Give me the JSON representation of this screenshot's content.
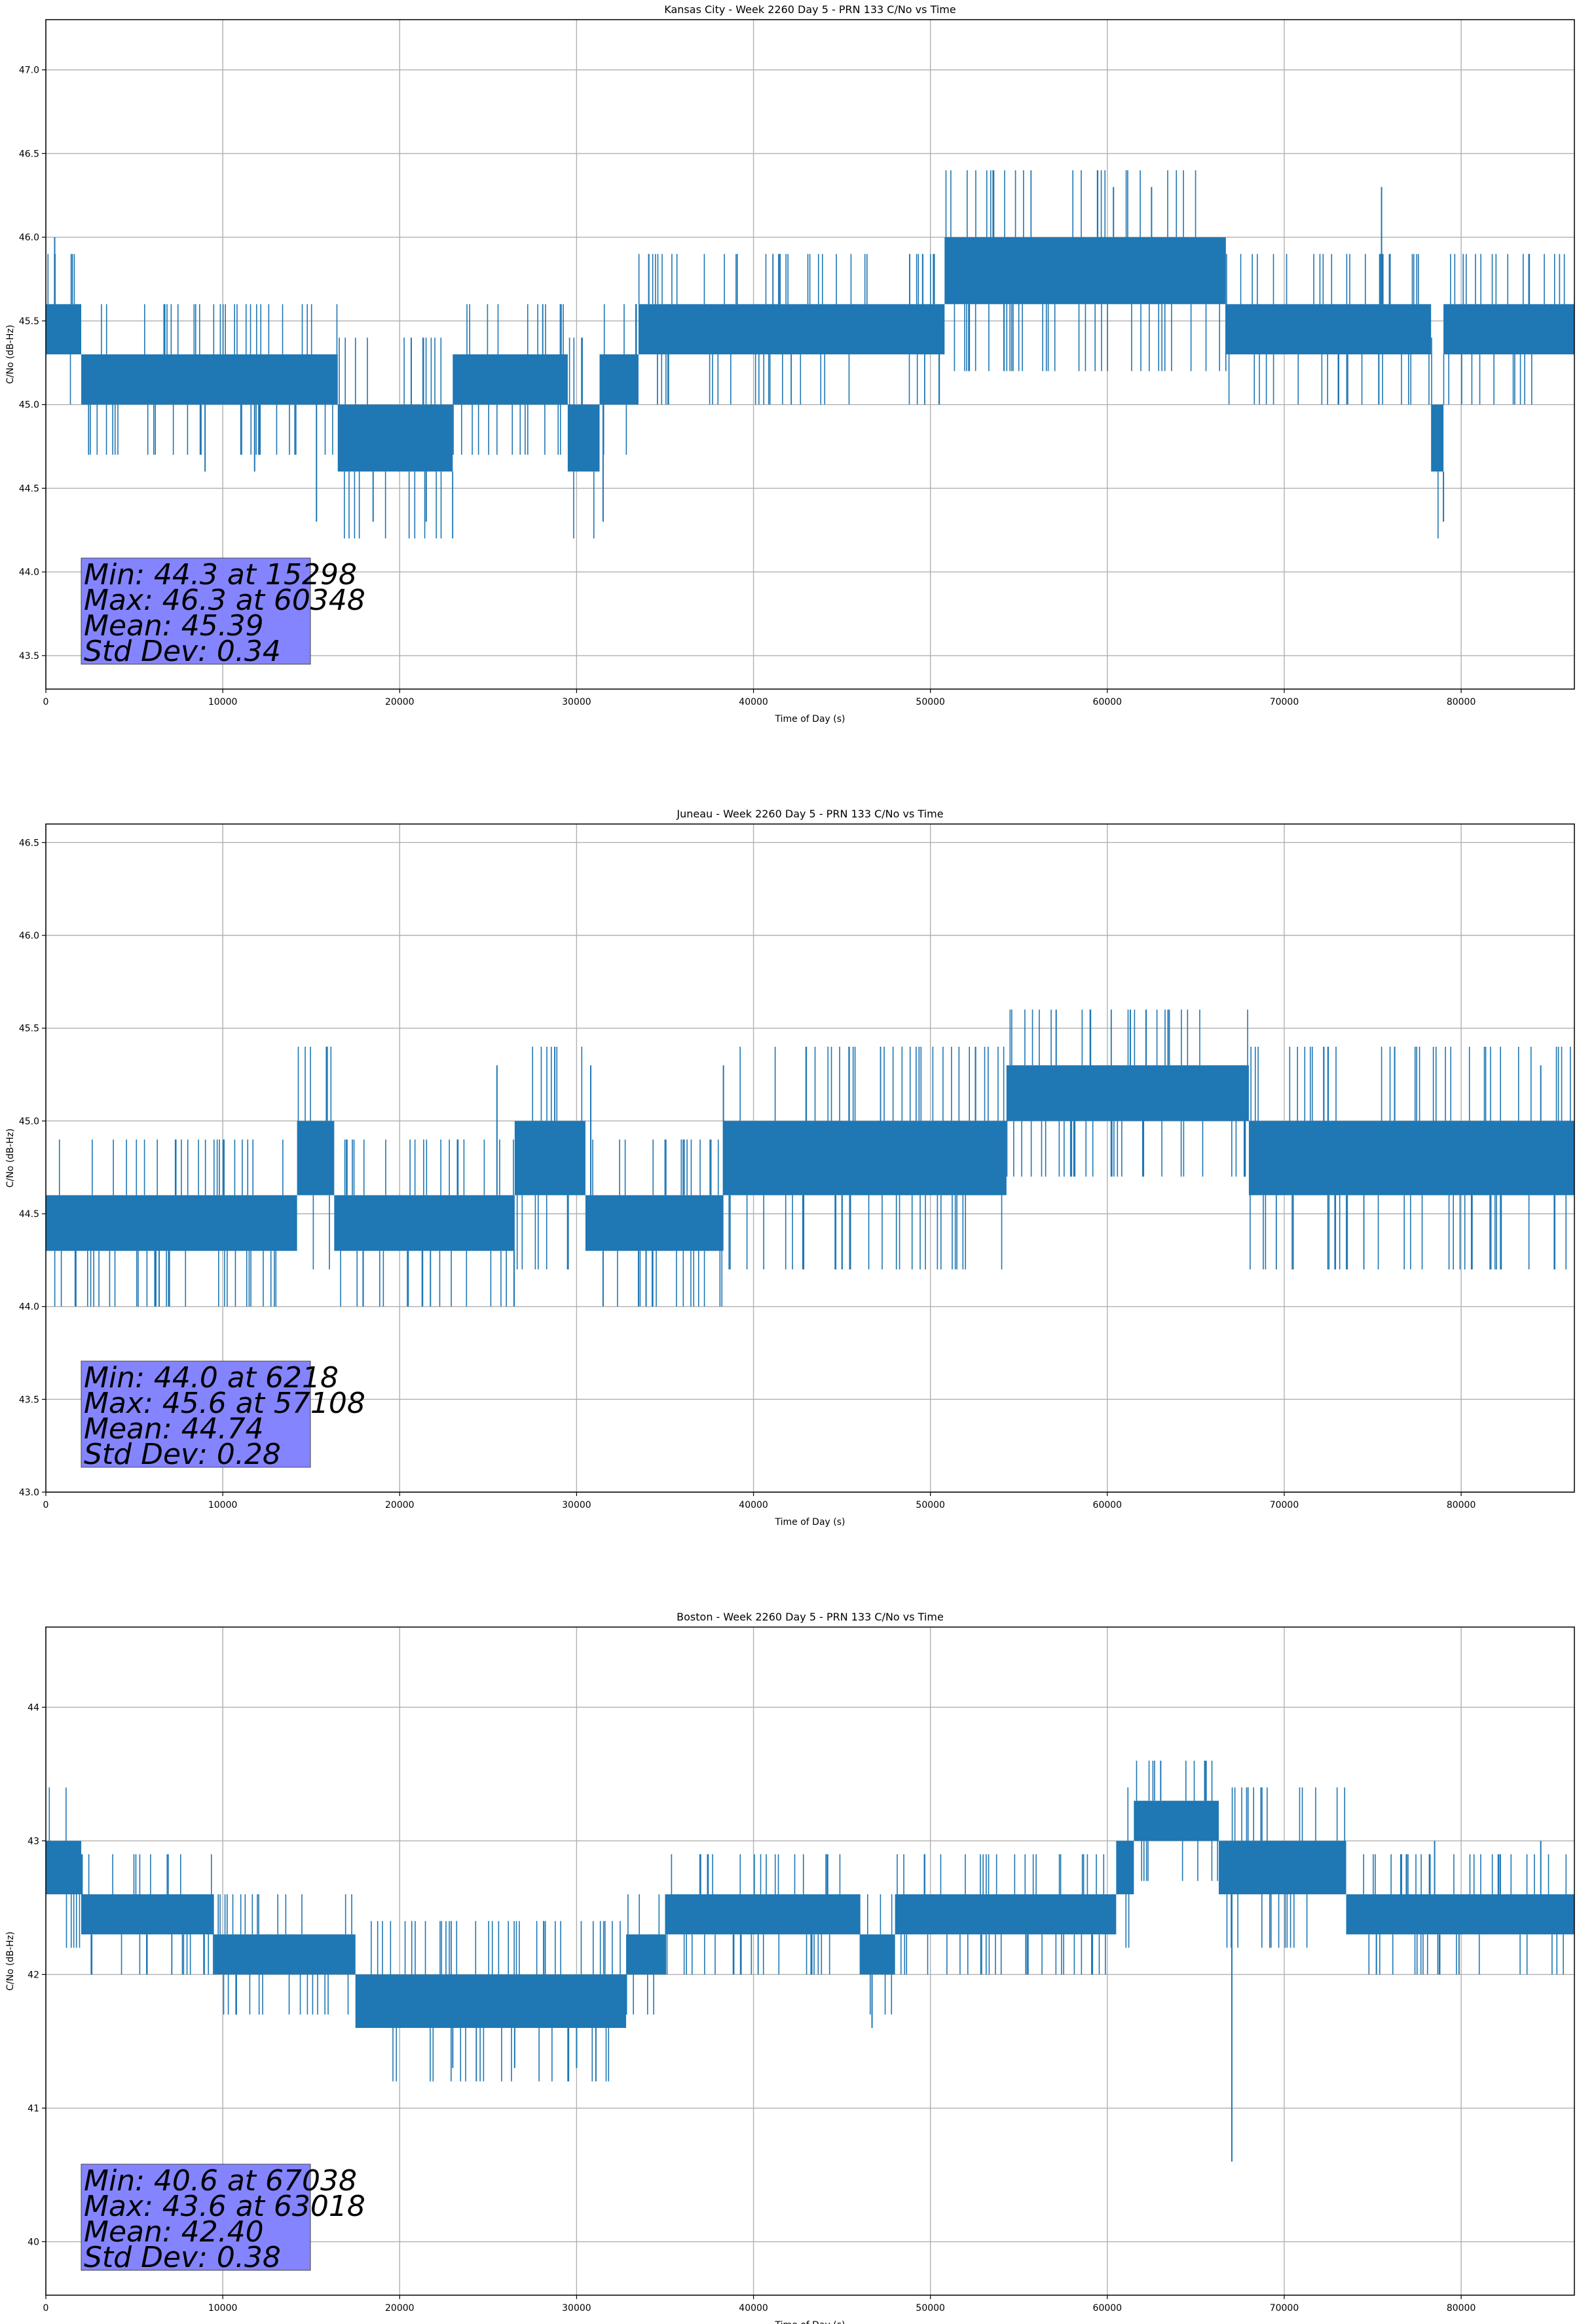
{
  "chart_data": [
    {
      "type": "line",
      "title": "Kansas City - Week 2260 Day 5 - PRN 133 C/No vs Time",
      "xlabel": "Time of Day (s)",
      "ylabel": "C/No (dB-Hz)",
      "xlim": [
        0,
        86400
      ],
      "ylim": [
        43.3,
        47.3
      ],
      "xticks": [
        0,
        10000,
        20000,
        30000,
        40000,
        50000,
        60000,
        70000,
        80000
      ],
      "yticks": [
        43.5,
        44.0,
        44.5,
        45.0,
        45.5,
        46.0,
        46.5,
        47.0
      ],
      "ytick_labels": [
        "43.5",
        "44.0",
        "44.5",
        "45.0",
        "45.5",
        "46.0",
        "46.5",
        "47.0"
      ],
      "grid": true,
      "line_color": "#1f77b4",
      "stats_color": "#8080ff",
      "stats": [
        "Min: 44.3 at 15298",
        "Max: 46.3 at 60348",
        "Mean: 45.39",
        "Std Dev: 0.34"
      ],
      "series": [
        {
          "bands": [
            {
              "x0": 0,
              "x1": 2000,
              "y0": 45.3,
              "y1": 45.6
            },
            {
              "x0": 2000,
              "x1": 16500,
              "y0": 45.0,
              "y1": 45.3
            },
            {
              "x0": 16500,
              "x1": 23000,
              "y0": 44.6,
              "y1": 45.0
            },
            {
              "x0": 23000,
              "x1": 29500,
              "y0": 45.0,
              "y1": 45.3
            },
            {
              "x0": 29500,
              "x1": 31300,
              "y0": 44.6,
              "y1": 45.0
            },
            {
              "x0": 31300,
              "x1": 33500,
              "y0": 45.0,
              "y1": 45.3
            },
            {
              "x0": 33500,
              "x1": 50800,
              "y0": 45.3,
              "y1": 45.6
            },
            {
              "x0": 50800,
              "x1": 66700,
              "y0": 45.6,
              "y1": 46.0
            },
            {
              "x0": 66700,
              "x1": 78300,
              "y0": 45.3,
              "y1": 45.6
            },
            {
              "x0": 78300,
              "x1": 79000,
              "y0": 44.6,
              "y1": 45.0
            },
            {
              "x0": 79000,
              "x1": 86400,
              "y0": 45.3,
              "y1": 45.6
            }
          ],
          "spikes": [
            {
              "x": 500,
              "y": 46.0
            },
            {
              "x": 15298,
              "y": 44.3
            },
            {
              "x": 18500,
              "y": 44.3
            },
            {
              "x": 21500,
              "y": 44.3
            },
            {
              "x": 31500,
              "y": 44.3
            },
            {
              "x": 60348,
              "y": 46.3
            },
            {
              "x": 62500,
              "y": 46.3
            },
            {
              "x": 75500,
              "y": 46.3
            },
            {
              "x": 79000,
              "y": 44.3
            },
            {
              "x": 9000,
              "y": 44.6
            },
            {
              "x": 11800,
              "y": 44.6
            }
          ]
        }
      ]
    },
    {
      "type": "line",
      "title": "Juneau - Week 2260 Day 5 - PRN 133 C/No vs Time",
      "xlabel": "Time of Day (s)",
      "ylabel": "C/No (dB-Hz)",
      "xlim": [
        0,
        86400
      ],
      "ylim": [
        43.0,
        46.6
      ],
      "xticks": [
        0,
        10000,
        20000,
        30000,
        40000,
        50000,
        60000,
        70000,
        80000
      ],
      "yticks": [
        43.0,
        43.5,
        44.0,
        44.5,
        45.0,
        45.5,
        46.0,
        46.5
      ],
      "ytick_labels": [
        "43.0",
        "43.5",
        "44.0",
        "44.5",
        "45.0",
        "45.5",
        "46.0",
        "46.5"
      ],
      "grid": true,
      "line_color": "#1f77b4",
      "stats_color": "#8080ff",
      "stats": [
        "Min: 44.0 at 6218",
        "Max: 45.6 at 57108",
        "Mean: 44.74",
        "Std Dev: 0.28"
      ],
      "series": [
        {
          "bands": [
            {
              "x0": 0,
              "x1": 14200,
              "y0": 44.3,
              "y1": 44.6
            },
            {
              "x0": 14200,
              "x1": 16300,
              "y0": 44.6,
              "y1": 45.0
            },
            {
              "x0": 16300,
              "x1": 26500,
              "y0": 44.3,
              "y1": 44.6
            },
            {
              "x0": 26500,
              "x1": 30500,
              "y0": 44.6,
              "y1": 45.0
            },
            {
              "x0": 30500,
              "x1": 38300,
              "y0": 44.3,
              "y1": 44.6
            },
            {
              "x0": 38300,
              "x1": 54300,
              "y0": 44.6,
              "y1": 45.0
            },
            {
              "x0": 54300,
              "x1": 68000,
              "y0": 45.0,
              "y1": 45.3
            },
            {
              "x0": 68000,
              "x1": 86400,
              "y0": 44.6,
              "y1": 45.0
            }
          ],
          "spikes": [
            {
              "x": 6218,
              "y": 44.0
            },
            {
              "x": 25500,
              "y": 45.3
            },
            {
              "x": 30800,
              "y": 45.3
            },
            {
              "x": 31500,
              "y": 44.0
            },
            {
              "x": 33500,
              "y": 44.0
            },
            {
              "x": 57108,
              "y": 45.6
            },
            {
              "x": 61300,
              "y": 45.6
            },
            {
              "x": 63500,
              "y": 45.6
            },
            {
              "x": 84500,
              "y": 45.3
            },
            {
              "x": 38300,
              "y": 45.3
            }
          ]
        }
      ]
    },
    {
      "type": "line",
      "title": "Boston - Week 2260 Day 5 - PRN 133 C/No vs Time",
      "xlabel": "Time of Day (s)",
      "ylabel": "C/No (dB-Hz)",
      "xlim": [
        0,
        86400
      ],
      "ylim": [
        39.6,
        44.6
      ],
      "xticks": [
        0,
        10000,
        20000,
        30000,
        40000,
        50000,
        60000,
        70000,
        80000
      ],
      "yticks": [
        40,
        41,
        42,
        43,
        44
      ],
      "ytick_labels": [
        "40",
        "41",
        "42",
        "43",
        "44"
      ],
      "grid": true,
      "line_color": "#1f77b4",
      "stats_color": "#8080ff",
      "stats": [
        "Min: 40.6 at 67038",
        "Max: 43.6 at 63018",
        "Mean: 42.40",
        "Std Dev: 0.38"
      ],
      "series": [
        {
          "bands": [
            {
              "x0": 0,
              "x1": 2000,
              "y0": 42.6,
              "y1": 43.0
            },
            {
              "x0": 2000,
              "x1": 9500,
              "y0": 42.3,
              "y1": 42.6
            },
            {
              "x0": 9500,
              "x1": 17500,
              "y0": 42.0,
              "y1": 42.3
            },
            {
              "x0": 17500,
              "x1": 32800,
              "y0": 41.6,
              "y1": 42.0
            },
            {
              "x0": 32800,
              "x1": 35000,
              "y0": 42.0,
              "y1": 42.3
            },
            {
              "x0": 35000,
              "x1": 46000,
              "y0": 42.3,
              "y1": 42.6
            },
            {
              "x0": 46000,
              "x1": 48000,
              "y0": 42.0,
              "y1": 42.3
            },
            {
              "x0": 48000,
              "x1": 60500,
              "y0": 42.3,
              "y1": 42.6
            },
            {
              "x0": 60500,
              "x1": 61500,
              "y0": 42.6,
              "y1": 43.0
            },
            {
              "x0": 61500,
              "x1": 66300,
              "y0": 43.0,
              "y1": 43.3
            },
            {
              "x0": 66300,
              "x1": 73500,
              "y0": 42.6,
              "y1": 43.0
            },
            {
              "x0": 73500,
              "x1": 86400,
              "y0": 42.3,
              "y1": 42.6
            }
          ],
          "spikes": [
            {
              "x": 23000,
              "y": 41.3
            },
            {
              "x": 26500,
              "y": 41.3
            },
            {
              "x": 30000,
              "y": 41.3
            },
            {
              "x": 46700,
              "y": 41.6
            },
            {
              "x": 63018,
              "y": 43.6
            },
            {
              "x": 67038,
              "y": 40.6
            },
            {
              "x": 78500,
              "y": 43.0
            },
            {
              "x": 84500,
              "y": 43.0
            }
          ]
        }
      ]
    }
  ]
}
